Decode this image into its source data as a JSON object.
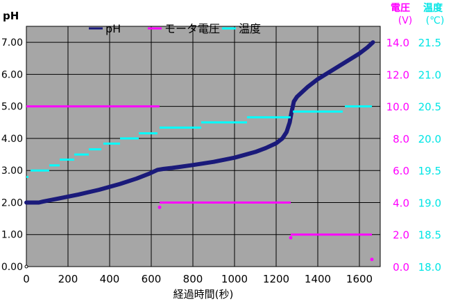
{
  "chart_data": {
    "type": "scatter",
    "x_axis": {
      "label": "経過時間(秒)",
      "range": [
        0,
        1700
      ],
      "ticks": [
        "0",
        "200",
        "400",
        "600",
        "800",
        "1000",
        "1200",
        "1400",
        "1600"
      ]
    },
    "y_left": {
      "label": "pH",
      "range": [
        0,
        7.5
      ],
      "ticks": [
        "0.00",
        "1.00",
        "2.00",
        "3.00",
        "4.00",
        "5.00",
        "6.00",
        "7.00"
      ],
      "color": "#000000"
    },
    "y_right1": {
      "label_line1": "電圧",
      "label_line2": "(V)",
      "range": [
        0,
        15
      ],
      "ticks": [
        "0.0",
        "2.0",
        "4.0",
        "6.0",
        "8.0",
        "10.0",
        "12.0",
        "14.0"
      ],
      "color": "#ff00ff"
    },
    "y_right2": {
      "label_line1": "温度",
      "label_line2": "(℃)",
      "range": [
        18.0,
        21.75
      ],
      "ticks": [
        "18.0",
        "18.5",
        "19.0",
        "19.5",
        "20.0",
        "20.5",
        "21.0",
        "21.5"
      ],
      "color": "#00e5e5"
    },
    "grid": true,
    "plot_background": "#a6a6a6",
    "legend_position": "top-left",
    "series": [
      {
        "name": "pH",
        "axis": "left",
        "color": "#1a1a7a",
        "style": "thick-curve",
        "points": [
          [
            0,
            2.0
          ],
          [
            60,
            2.0
          ],
          [
            80,
            2.03
          ],
          [
            150,
            2.12
          ],
          [
            250,
            2.25
          ],
          [
            350,
            2.4
          ],
          [
            450,
            2.58
          ],
          [
            530,
            2.75
          ],
          [
            590,
            2.9
          ],
          [
            630,
            3.02
          ],
          [
            660,
            3.05
          ],
          [
            700,
            3.08
          ],
          [
            800,
            3.17
          ],
          [
            900,
            3.27
          ],
          [
            1000,
            3.4
          ],
          [
            1100,
            3.58
          ],
          [
            1150,
            3.7
          ],
          [
            1200,
            3.85
          ],
          [
            1230,
            4.0
          ],
          [
            1250,
            4.2
          ],
          [
            1265,
            4.5
          ],
          [
            1275,
            4.85
          ],
          [
            1285,
            5.15
          ],
          [
            1300,
            5.3
          ],
          [
            1350,
            5.6
          ],
          [
            1400,
            5.85
          ],
          [
            1450,
            6.05
          ],
          [
            1500,
            6.25
          ],
          [
            1550,
            6.45
          ],
          [
            1600,
            6.65
          ],
          [
            1640,
            6.85
          ],
          [
            1665,
            7.0
          ]
        ]
      },
      {
        "name": "モータ電圧",
        "axis": "right1",
        "color": "#ff00ff",
        "segments": [
          [
            0,
            640,
            10.0
          ],
          [
            640,
            1270,
            4.0
          ],
          [
            1270,
            1660,
            2.0
          ]
        ],
        "points": [
          [
            640,
            3.7
          ],
          [
            1270,
            1.8
          ],
          [
            1660,
            0.45
          ]
        ]
      },
      {
        "name": "温度",
        "axis": "right2",
        "color": "#00ffff",
        "segments": [
          [
            0,
            10,
            19.4
          ],
          [
            20,
            110,
            19.5
          ],
          [
            110,
            160,
            19.58
          ],
          [
            160,
            230,
            19.67
          ],
          [
            230,
            300,
            19.75
          ],
          [
            300,
            360,
            19.83
          ],
          [
            370,
            450,
            19.92
          ],
          [
            450,
            540,
            20.0
          ],
          [
            540,
            630,
            20.08
          ],
          [
            640,
            840,
            20.17
          ],
          [
            840,
            1060,
            20.25
          ],
          [
            1060,
            1270,
            20.33
          ],
          [
            1280,
            1520,
            20.42
          ],
          [
            1530,
            1660,
            20.5
          ]
        ]
      }
    ]
  }
}
